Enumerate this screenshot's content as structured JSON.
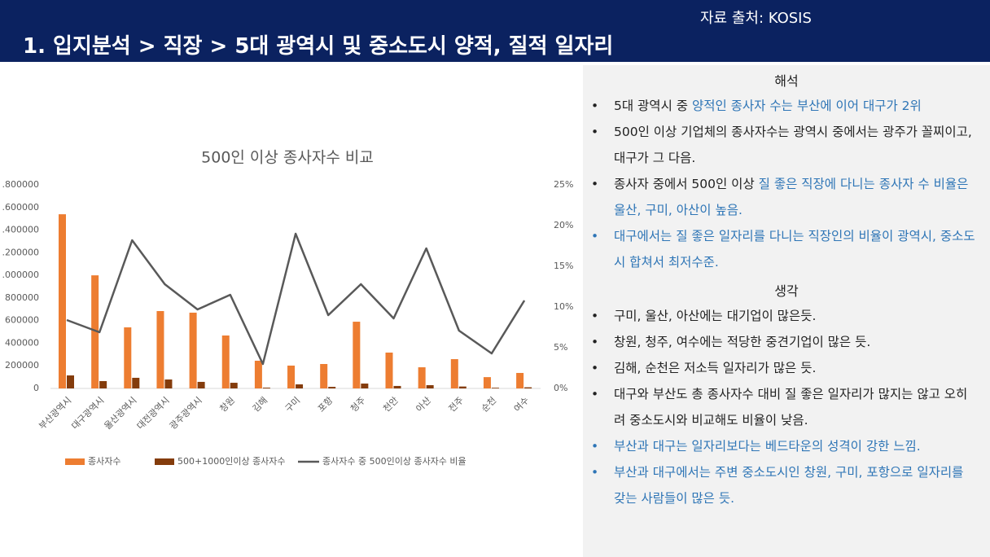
{
  "header": {
    "title": "1. 입지분석 > 직장 >  5대 광역시 및 중소도시 양적, 질적 일자리",
    "source": "자료 출처: KOSIS"
  },
  "chart_data": {
    "type": "bar",
    "title": "500인 이상 종사자수 비교",
    "categories": [
      "부산광역시",
      "대구광역시",
      "울산광역시",
      "대전광역시",
      "광주광역시",
      "창원",
      "김해",
      "구미",
      "포항",
      "청주",
      "천안",
      "아산",
      "전주",
      "순천",
      "여수"
    ],
    "series": [
      {
        "name": "종사자수",
        "color": "#ed7d31",
        "values": [
          1540000,
          1000000,
          540000,
          684000,
          670000,
          468000,
          245000,
          202000,
          216000,
          590000,
          317000,
          187000,
          259000,
          100000,
          137000
        ]
      },
      {
        "name": "500+1000인이상 종사자수",
        "color": "#843c0c",
        "values": [
          115000,
          65000,
          94000,
          79000,
          58000,
          50000,
          7000,
          36000,
          14000,
          43000,
          22000,
          29000,
          17000,
          6000,
          10000
        ]
      },
      {
        "name": "종사자수 중 500인이상 종사자수 비율",
        "color": "#595959",
        "type": "line",
        "axis": "y2",
        "values": [
          8.4,
          6.9,
          18.2,
          12.8,
          9.7,
          11.5,
          3.0,
          19.0,
          9.0,
          12.8,
          8.6,
          17.2,
          7.1,
          4.3,
          10.8
        ]
      }
    ],
    "ylim": [
      0,
      1800000
    ],
    "yticks": [
      0,
      {
        "value": 200000,
        "label": "200000"
      },
      {
        "value": 400000,
        "label": "400000"
      },
      {
        "value": 600000,
        "label": "600000"
      },
      {
        "value": 800000,
        "label": "800000"
      },
      {
        "value": 1000000,
        "label": ".000000"
      },
      {
        "value": 1200000,
        "label": ".200000"
      },
      {
        "value": 1400000,
        "label": ".400000"
      },
      {
        "value": 1600000,
        "label": ".600000"
      },
      {
        "value": 1800000,
        "label": ".800000"
      }
    ],
    "y2lim": [
      0,
      25
    ],
    "y2ticks": [
      {
        "value": 0,
        "label": "0%"
      },
      {
        "value": 5,
        "label": "5%"
      },
      {
        "value": 10,
        "label": "10%"
      },
      {
        "value": 15,
        "label": "15%"
      },
      {
        "value": 20,
        "label": "20%"
      },
      {
        "value": 25,
        "label": "25%"
      }
    ],
    "legend": "bottom"
  },
  "panel": {
    "sections": [
      {
        "heading": "해석",
        "items": [
          [
            {
              "text": "5대 광역시 중 ",
              "color": "#222222"
            },
            {
              "text": "양적인 종사자 수는 부산에 이어 대구가 2위",
              "color": "#2e75b6"
            }
          ],
          [
            {
              "text": "500인 이상 기업체의 종사자수는 광역시 중에서는 광주가 꼴찌이고, 대구가 그 다음.",
              "color": "#222222"
            }
          ],
          [
            {
              "text": "종사자 중에서 500인 이상 ",
              "color": "#222222"
            },
            {
              "text": "질 좋은 직장에 다니는 종사자 수 비율은 울산, 구미, 아산이 높음.",
              "color": "#2e75b6"
            }
          ],
          [
            {
              "text": "대구에서는 질 좋은 일자리를 다니는 직장인의 비율이 광역시, 중소도시 합쳐서 최저수준.",
              "color": "#2e75b6"
            }
          ]
        ]
      },
      {
        "heading": "생각",
        "items": [
          [
            {
              "text": "구미, 울산, 아산에는 대기업이 많은듯.",
              "color": "#222222"
            }
          ],
          [
            {
              "text": "창원, 청주, 여수에는 적당한 중견기업이 많은 듯.",
              "color": "#222222"
            }
          ],
          [
            {
              "text": "김해, 순천은 저소득 일자리가 많은 듯.",
              "color": "#222222"
            }
          ],
          [
            {
              "text": "대구와 부산도 총 종사자수 대비 질 좋은 일자리가 많지는 않고 오히려 중소도시와 비교해도 비율이 낮음.",
              "color": "#222222"
            }
          ],
          [
            {
              "text": "부산과 대구는 일자리보다는 베드타운의 성격이 강한 느낌.",
              "color": "#2e75b6"
            }
          ],
          [
            {
              "text": "부산과 대구에서는 주변 중소도시인 창원, 구미, 포항으로 일자리를 갖는 사람들이 많은 듯.",
              "color": "#2e75b6"
            }
          ]
        ]
      }
    ]
  }
}
